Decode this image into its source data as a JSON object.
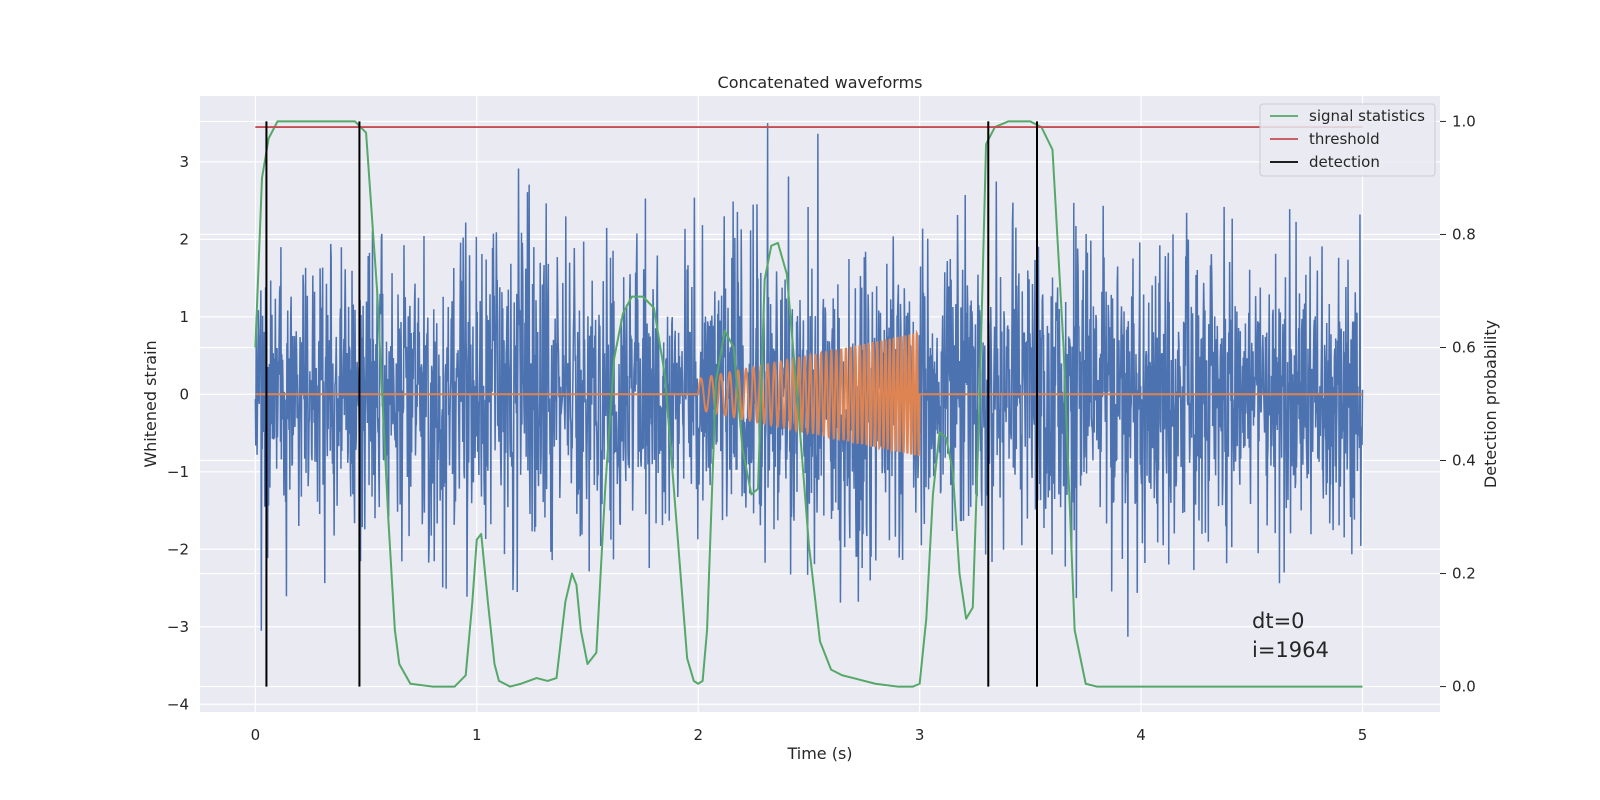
{
  "chart_data": {
    "type": "line",
    "title": "Concatenated waveforms",
    "xlabel": "Time (s)",
    "ylabel": "Whitened strain",
    "y2label": "Detection probability",
    "xlim": [
      -0.25,
      5.35
    ],
    "ylim": [
      -4.1,
      3.85
    ],
    "y2lim": [
      -0.045,
      1.045
    ],
    "xticks": [
      0,
      1,
      2,
      3,
      4,
      5
    ],
    "yticks": [
      -4,
      -3,
      -2,
      -1,
      0,
      1,
      2,
      3
    ],
    "y2ticks": [
      0.0,
      0.2,
      0.4,
      0.6,
      0.8,
      1.0
    ],
    "xtick_labels": [
      "0",
      "1",
      "2",
      "3",
      "4",
      "5"
    ],
    "ytick_labels": [
      "−4",
      "−3",
      "−2",
      "−1",
      "0",
      "1",
      "2",
      "3"
    ],
    "y2tick_labels": [
      "0.0",
      "0.2",
      "0.4",
      "0.6",
      "0.8",
      "1.0"
    ],
    "grid": true,
    "legend_position": "top-right",
    "series": [
      {
        "name": "",
        "axis": "left",
        "color": "#4c72b0",
        "kind": "noise",
        "x_range": [
          0,
          5
        ],
        "typical_range": [
          -1.3,
          1.3
        ],
        "extreme_range": [
          -3.7,
          3.5
        ]
      },
      {
        "name": "",
        "axis": "left",
        "color": "#dd8452",
        "kind": "chirp",
        "x_range": [
          0,
          5
        ],
        "chirp_interval": [
          2,
          3
        ],
        "amplitude_start": 0.2,
        "amplitude_end": 0.8,
        "frequency_start_hz": 20,
        "frequency_end_hz": 60
      },
      {
        "name": "signal statistics",
        "axis": "right",
        "color": "#55a868",
        "x": [
          0.0,
          0.03,
          0.06,
          0.1,
          0.15,
          0.3,
          0.45,
          0.5,
          0.55,
          0.6,
          0.63,
          0.65,
          0.7,
          0.8,
          0.9,
          0.95,
          0.98,
          1.0,
          1.02,
          1.05,
          1.08,
          1.1,
          1.15,
          1.2,
          1.27,
          1.32,
          1.36,
          1.4,
          1.43,
          1.45,
          1.47,
          1.5,
          1.54,
          1.58,
          1.62,
          1.66,
          1.7,
          1.75,
          1.8,
          1.85,
          1.9,
          1.95,
          1.98,
          2.0,
          2.02,
          2.04,
          2.08,
          2.12,
          2.16,
          2.2,
          2.24,
          2.27,
          2.3,
          2.33,
          2.36,
          2.4,
          2.45,
          2.5,
          2.55,
          2.6,
          2.65,
          2.7,
          2.8,
          2.9,
          2.97,
          3.0,
          3.03,
          3.06,
          3.09,
          3.12,
          3.15,
          3.18,
          3.21,
          3.24,
          3.27,
          3.3,
          3.34,
          3.4,
          3.5,
          3.55,
          3.6,
          3.65,
          3.7,
          3.75,
          3.8,
          4.0,
          5.0
        ],
        "values": [
          0.6,
          0.9,
          0.97,
          1.0,
          1.0,
          1.0,
          1.0,
          0.98,
          0.7,
          0.3,
          0.1,
          0.04,
          0.005,
          0.0,
          0.0,
          0.02,
          0.15,
          0.26,
          0.27,
          0.15,
          0.04,
          0.01,
          0.0,
          0.005,
          0.015,
          0.01,
          0.015,
          0.15,
          0.2,
          0.18,
          0.1,
          0.04,
          0.06,
          0.35,
          0.58,
          0.66,
          0.69,
          0.69,
          0.67,
          0.55,
          0.3,
          0.05,
          0.01,
          0.005,
          0.01,
          0.1,
          0.54,
          0.63,
          0.6,
          0.42,
          0.34,
          0.35,
          0.72,
          0.78,
          0.785,
          0.73,
          0.5,
          0.25,
          0.08,
          0.03,
          0.02,
          0.015,
          0.005,
          0.0,
          0.0,
          0.005,
          0.12,
          0.34,
          0.45,
          0.44,
          0.38,
          0.2,
          0.12,
          0.14,
          0.5,
          0.96,
          0.99,
          1.0,
          1.0,
          0.99,
          0.95,
          0.6,
          0.1,
          0.005,
          0.0,
          0.0,
          0.0
        ]
      },
      {
        "name": "threshold",
        "axis": "right",
        "color": "#c44e52",
        "x": [
          0,
          5
        ],
        "values": [
          0.99,
          0.99
        ]
      },
      {
        "name": "detection",
        "axis": "right",
        "color": "#000000",
        "kind": "vlines",
        "x": [
          0.05,
          0.47,
          3.31,
          3.53
        ],
        "ymin": 0.0,
        "ymax": 1.0
      }
    ],
    "annotation": {
      "line1": "dt=0",
      "line2": "i=1964",
      "x": 4.5,
      "y": -3.3
    }
  }
}
